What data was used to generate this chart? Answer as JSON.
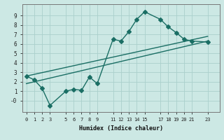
{
  "xlabel": "Humidex (Indice chaleur)",
  "ylabel": "",
  "bg_color": "#cce8e4",
  "grid_color": "#aad0cc",
  "line_color": "#1a6e64",
  "xlim": [
    -0.5,
    24.5
  ],
  "ylim": [
    -1.2,
    10.2
  ],
  "xticks": [
    0,
    1,
    2,
    3,
    5,
    6,
    7,
    8,
    9,
    11,
    12,
    13,
    14,
    15,
    17,
    18,
    19,
    20,
    21,
    23
  ],
  "yticks": [
    0,
    1,
    2,
    3,
    4,
    5,
    6,
    7,
    8,
    9
  ],
  "ytick_labels": [
    "-0",
    "1",
    "2",
    "3",
    "4",
    "5",
    "6",
    "7",
    "8",
    "9"
  ],
  "line1_x": [
    0,
    1,
    2,
    3,
    5,
    6,
    7,
    8,
    9,
    11,
    12,
    13,
    14,
    15,
    17,
    18,
    19,
    20,
    21,
    23
  ],
  "line1_y": [
    2.6,
    2.2,
    1.3,
    -0.5,
    1.0,
    1.2,
    1.1,
    2.5,
    1.8,
    6.5,
    6.3,
    7.3,
    8.6,
    9.4,
    8.6,
    7.8,
    7.2,
    6.5,
    6.3,
    6.2
  ],
  "line2_x": [
    0,
    23
  ],
  "line2_y": [
    1.8,
    6.3
  ],
  "line3_x": [
    0,
    23
  ],
  "line3_y": [
    2.6,
    6.8
  ],
  "marker": "D",
  "markersize": 3,
  "linewidth": 1.0
}
